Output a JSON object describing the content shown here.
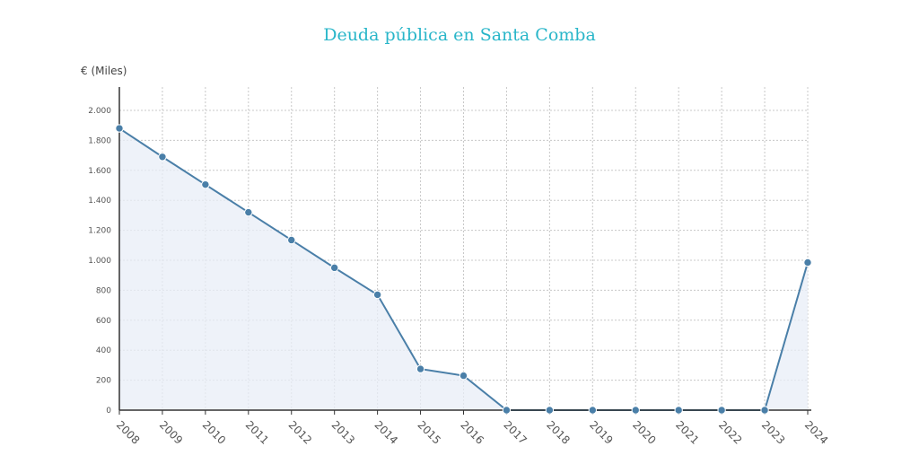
{
  "chart_data": {
    "type": "line",
    "title": "Deuda pública en Santa Comba",
    "ylabel": "€ (Miles)",
    "xlabel": "",
    "x": [
      "2008",
      "2009",
      "2010",
      "2011",
      "2012",
      "2013",
      "2014",
      "2015",
      "2016",
      "2017",
      "2018",
      "2019",
      "2020",
      "2021",
      "2022",
      "2023",
      "2024"
    ],
    "values": [
      1880,
      1690,
      1505,
      1320,
      1135,
      950,
      770,
      275,
      230,
      0,
      0,
      0,
      0,
      0,
      0,
      0,
      985
    ],
    "ylim": [
      0,
      2000
    ],
    "yticks": [
      0,
      200,
      400,
      600,
      800,
      1000,
      1200,
      1400,
      1600,
      1800,
      2000
    ],
    "ytick_labels": [
      "0",
      "200",
      "400",
      "600",
      "800",
      "1.000",
      "1.200",
      "1.400",
      "1.600",
      "1.800",
      "2.000"
    ],
    "grid": true,
    "line_color": "#4a7fa8",
    "fill_color": "#e8eef7"
  }
}
